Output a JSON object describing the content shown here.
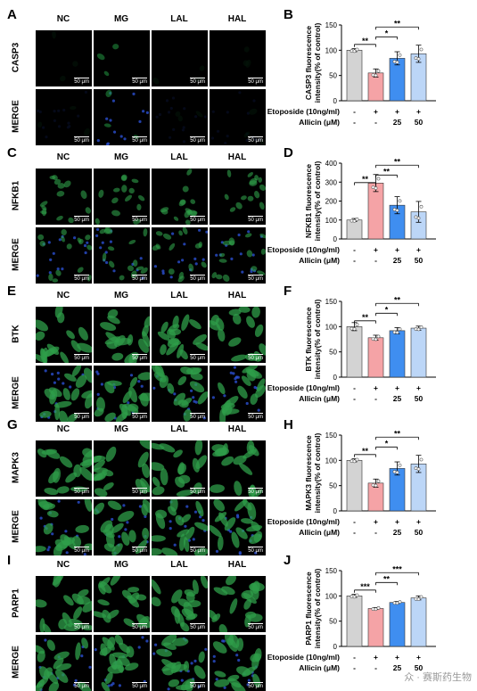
{
  "panels": [
    {
      "micro_label": "A",
      "chart_label": "B",
      "columns": [
        "NC",
        "MG",
        "LAL",
        "HAL"
      ],
      "rows": [
        "CASP3",
        "MERGE"
      ],
      "scale_bar": "50 μm",
      "stain": "sparse",
      "chart_data": {
        "type": "bar",
        "ylabel": "CASP3 fluorescence intensity(% of control)",
        "ylim": [
          0,
          150
        ],
        "yticks": [
          0,
          50,
          100,
          150
        ],
        "values": [
          100,
          55,
          84,
          93
        ],
        "errors": [
          3,
          8,
          13,
          17
        ],
        "sig": [
          {
            "a": 0,
            "b": 1,
            "label": "**"
          },
          {
            "a": 1,
            "b": 2,
            "label": "*"
          },
          {
            "a": 1,
            "b": 3,
            "label": "**"
          }
        ]
      }
    },
    {
      "micro_label": "C",
      "chart_label": "D",
      "columns": [
        "NC",
        "MG",
        "LAL",
        "HAL"
      ],
      "rows": [
        "NFKB1",
        "MERGE"
      ],
      "scale_bar": "50 μm",
      "stain": "medium",
      "chart_data": {
        "type": "bar",
        "ylabel": "NFKB1 fluorescence intensity(% of control)",
        "ylim": [
          0,
          400
        ],
        "yticks": [
          0,
          100,
          200,
          300,
          400
        ],
        "values": [
          100,
          295,
          178,
          143
        ],
        "errors": [
          8,
          45,
          45,
          55
        ],
        "sig": [
          {
            "a": 0,
            "b": 1,
            "label": "**"
          },
          {
            "a": 1,
            "b": 2,
            "label": "**"
          },
          {
            "a": 1,
            "b": 3,
            "label": "**"
          }
        ]
      }
    },
    {
      "micro_label": "E",
      "chart_label": "F",
      "columns": [
        "NC",
        "MG",
        "LAL",
        "HAL"
      ],
      "rows": [
        "BTK",
        "MERGE"
      ],
      "scale_bar": "50 μm",
      "stain": "dense",
      "chart_data": {
        "type": "bar",
        "ylabel": "BTK fluorescence intensity(% of control)",
        "ylim": [
          0,
          150
        ],
        "yticks": [
          0,
          50,
          100,
          150
        ],
        "values": [
          100,
          78,
          92,
          97
        ],
        "errors": [
          8,
          5,
          6,
          4
        ],
        "sig": [
          {
            "a": 0,
            "b": 1,
            "label": "**"
          },
          {
            "a": 1,
            "b": 2,
            "label": "*"
          },
          {
            "a": 1,
            "b": 3,
            "label": "**"
          }
        ]
      }
    },
    {
      "micro_label": "G",
      "chart_label": "H",
      "columns": [
        "NC",
        "MG",
        "LAL",
        "HAL"
      ],
      "rows": [
        "MAPK3",
        "MERGE"
      ],
      "scale_bar": "50 μm",
      "stain": "dense",
      "chart_data": {
        "type": "bar",
        "ylabel": "MAPK3 fluorescence intensity(% of control)",
        "ylim": [
          0,
          150
        ],
        "yticks": [
          0,
          50,
          100,
          150
        ],
        "values": [
          100,
          55,
          84,
          93
        ],
        "errors": [
          3,
          8,
          13,
          17
        ],
        "sig": [
          {
            "a": 0,
            "b": 1,
            "label": "**"
          },
          {
            "a": 1,
            "b": 2,
            "label": "*"
          },
          {
            "a": 1,
            "b": 3,
            "label": "**"
          }
        ]
      }
    },
    {
      "micro_label": "I",
      "chart_label": "J",
      "columns": [
        "NC",
        "MG",
        "LAL",
        "HAL"
      ],
      "rows": [
        "PARP1",
        "MERGE"
      ],
      "scale_bar": "50 μm",
      "stain": "dense",
      "chart_data": {
        "type": "bar",
        "ylabel": "PARP1 fluorescence intensity(% of control)",
        "ylim": [
          0,
          150
        ],
        "yticks": [
          0,
          50,
          100,
          150
        ],
        "values": [
          100,
          75,
          87,
          96
        ],
        "errors": [
          3,
          2,
          2,
          4
        ],
        "sig": [
          {
            "a": 0,
            "b": 1,
            "label": "***"
          },
          {
            "a": 1,
            "b": 2,
            "label": "**"
          },
          {
            "a": 1,
            "b": 3,
            "label": "***"
          }
        ]
      }
    }
  ],
  "treatment_table": {
    "rows": [
      {
        "label": "Etoposide  (10ng/ml)",
        "cells": [
          "-",
          "+",
          "+",
          "+"
        ]
      },
      {
        "label": "Allicin  (μM)",
        "cells": [
          "-",
          "-",
          "25",
          "50"
        ]
      }
    ]
  },
  "bar_colors": [
    "#d3d3d3",
    "#f5a3a6",
    "#3f8ef0",
    "#bcd6f7"
  ],
  "watermark": "众 · 赛斯药生物"
}
